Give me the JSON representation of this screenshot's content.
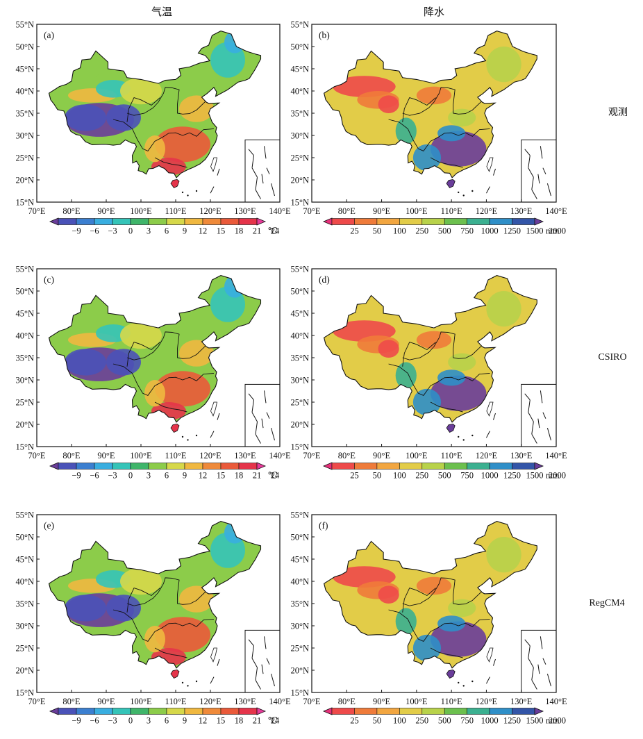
{
  "figure": {
    "col_headers": [
      "气温",
      "降水"
    ],
    "row_labels": [
      "观测",
      "CSIRO",
      "RegCM4"
    ]
  },
  "chart_data": [
    {
      "type": "heatmap",
      "panel": "(a)",
      "variable": "气温",
      "source": "观测",
      "xlim": [
        70,
        140
      ],
      "ylim": [
        15,
        55
      ],
      "xticks": [
        "70°E",
        "80°E",
        "90°E",
        "100°E",
        "110°E",
        "120°E",
        "130°E",
        "140°E"
      ],
      "yticks": [
        "15°N",
        "20°N",
        "25°N",
        "30°N",
        "35°N",
        "40°N",
        "45°N",
        "50°N",
        "55°N"
      ],
      "colorbar": {
        "labels": [
          "−9",
          "−6",
          "−3",
          "0",
          "3",
          "6",
          "9",
          "12",
          "15",
          "18",
          "21",
          "24"
        ],
        "unit": "℃"
      }
    },
    {
      "type": "heatmap",
      "panel": "(b)",
      "variable": "降水",
      "source": "观测",
      "xlim": [
        70,
        140
      ],
      "ylim": [
        15,
        55
      ],
      "xticks": [
        "70°E",
        "80°E",
        "90°E",
        "100°E",
        "110°E",
        "120°E",
        "130°E",
        "140°E"
      ],
      "yticks": [
        "15°N",
        "20°N",
        "25°N",
        "30°N",
        "35°N",
        "40°N",
        "45°N",
        "50°N",
        "55°N"
      ],
      "colorbar": {
        "labels": [
          "25",
          "50",
          "100",
          "250",
          "500",
          "750",
          "1000",
          "1250",
          "1500",
          "2000"
        ],
        "unit": "mm"
      }
    },
    {
      "type": "heatmap",
      "panel": "(c)",
      "variable": "气温",
      "source": "CSIRO",
      "xlim": [
        70,
        140
      ],
      "ylim": [
        15,
        55
      ],
      "xticks": [
        "70°E",
        "80°E",
        "90°E",
        "100°E",
        "110°E",
        "120°E",
        "130°E",
        "140°E"
      ],
      "yticks": [
        "15°N",
        "20°N",
        "25°N",
        "30°N",
        "35°N",
        "40°N",
        "45°N",
        "50°N",
        "55°N"
      ],
      "colorbar": {
        "labels": [
          "−9",
          "−6",
          "−3",
          "0",
          "3",
          "6",
          "9",
          "12",
          "15",
          "18",
          "21",
          "24"
        ],
        "unit": "℃"
      }
    },
    {
      "type": "heatmap",
      "panel": "(d)",
      "variable": "降水",
      "source": "CSIRO",
      "xlim": [
        70,
        140
      ],
      "ylim": [
        15,
        55
      ],
      "xticks": [
        "70°E",
        "80°E",
        "90°E",
        "100°E",
        "110°E",
        "120°E",
        "130°E",
        "140°E"
      ],
      "yticks": [
        "15°N",
        "20°N",
        "25°N",
        "30°N",
        "35°N",
        "40°N",
        "45°N",
        "50°N",
        "55°N"
      ],
      "colorbar": {
        "labels": [
          "25",
          "50",
          "100",
          "250",
          "500",
          "750",
          "1000",
          "1250",
          "1500",
          "2000"
        ],
        "unit": "mm"
      }
    },
    {
      "type": "heatmap",
      "panel": "(e)",
      "variable": "气温",
      "source": "RegCM4",
      "xlim": [
        70,
        140
      ],
      "ylim": [
        15,
        55
      ],
      "xticks": [
        "70°E",
        "80°E",
        "90°E",
        "100°E",
        "110°E",
        "120°E",
        "130°E",
        "140°E"
      ],
      "yticks": [
        "15°N",
        "20°N",
        "25°N",
        "30°N",
        "35°N",
        "40°N",
        "45°N",
        "50°N",
        "55°N"
      ],
      "colorbar": {
        "labels": [
          "−9",
          "−6",
          "−3",
          "0",
          "3",
          "6",
          "9",
          "12",
          "15",
          "18",
          "21",
          "24"
        ],
        "unit": "℃"
      }
    },
    {
      "type": "heatmap",
      "panel": "(f)",
      "variable": "降水",
      "source": "RegCM4",
      "xlim": [
        70,
        140
      ],
      "ylim": [
        15,
        55
      ],
      "xticks": [
        "70°E",
        "80°E",
        "90°E",
        "100°E",
        "110°E",
        "120°E",
        "130°E",
        "140°E"
      ],
      "yticks": [
        "15°N",
        "20°N",
        "25°N",
        "30°N",
        "35°N",
        "40°N",
        "45°N",
        "50°N",
        "55°N"
      ],
      "colorbar": {
        "labels": [
          "25",
          "50",
          "100",
          "250",
          "500",
          "750",
          "1000",
          "1250",
          "1500",
          "2000"
        ],
        "unit": "mm"
      }
    }
  ],
  "palettes": {
    "temperature": [
      "#6a3d9a",
      "#4a52b8",
      "#3b7fd0",
      "#39aee0",
      "#35c4b8",
      "#3fb56a",
      "#8ccc4a",
      "#d6d84a",
      "#f0b840",
      "#ef8a3a",
      "#ea5a3a",
      "#e5344a",
      "#e83a9a"
    ],
    "precipitation": [
      "#e8307a",
      "#ee4a4a",
      "#ef7b3a",
      "#f2a640",
      "#e2cc48",
      "#b8d24a",
      "#6cc04e",
      "#3bb090",
      "#2f8fc8",
      "#3355a8",
      "#6a3d9a"
    ]
  }
}
